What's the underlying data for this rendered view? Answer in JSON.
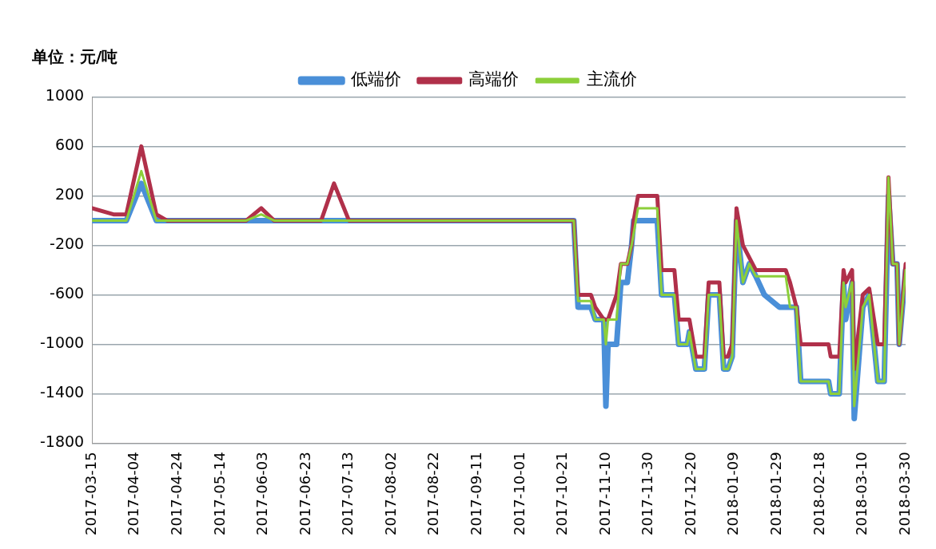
{
  "chart_data": {
    "type": "line",
    "ylabel": "单位：元/吨",
    "legend": "top",
    "grid": "y",
    "marker": "none",
    "line_style": "solid",
    "x": [
      "2017-03-15",
      "2017-03-25",
      "2017-03-31",
      "2017-04-07",
      "2017-04-14",
      "2017-04-19",
      "2017-05-26",
      "2017-06-02",
      "2017-06-08",
      "2017-06-30",
      "2017-07-06",
      "2017-07-13",
      "2017-10-26",
      "2017-10-28",
      "2017-11-03",
      "2017-11-05",
      "2017-11-09",
      "2017-11-10",
      "2017-11-11",
      "2017-11-15",
      "2017-11-17",
      "2017-11-20",
      "2017-11-22",
      "2017-11-23",
      "2017-11-25",
      "2017-12-04",
      "2017-12-06",
      "2017-12-12",
      "2017-12-14",
      "2017-12-18",
      "2017-12-19",
      "2017-12-22",
      "2017-12-26",
      "2017-12-28",
      "2018-01-02",
      "2018-01-04",
      "2018-01-06",
      "2018-01-08",
      "2018-01-10",
      "2018-01-13",
      "2018-01-16",
      "2018-01-19",
      "2018-01-23",
      "2018-01-30",
      "2018-02-02",
      "2018-02-04",
      "2018-02-07",
      "2018-02-09",
      "2018-02-22",
      "2018-02-23",
      "2018-02-27",
      "2018-03-01",
      "2018-03-02",
      "2018-03-05",
      "2018-03-06",
      "2018-03-10",
      "2018-03-13",
      "2018-03-17",
      "2018-03-20",
      "2018-03-22",
      "2018-03-24",
      "2018-03-26",
      "2018-03-27",
      "2018-03-30"
    ],
    "series": [
      {
        "name": "低端价",
        "color": "#4a8fd8",
        "values": [
          0,
          0,
          0,
          300,
          0,
          0,
          0,
          0,
          0,
          0,
          0,
          0,
          0,
          -700,
          -700,
          -800,
          -800,
          -1500,
          -1000,
          -1000,
          -500,
          -500,
          -200,
          0,
          0,
          0,
          -600,
          -600,
          -1000,
          -1000,
          -900,
          -1200,
          -1200,
          -600,
          -600,
          -1200,
          -1200,
          -1100,
          0,
          -500,
          -350,
          -450,
          -600,
          -700,
          -700,
          -700,
          -700,
          -1300,
          -1300,
          -1400,
          -1400,
          -500,
          -800,
          -500,
          -1600,
          -700,
          -600,
          -1300,
          -1300,
          200,
          -350,
          -350,
          -1000,
          -400
        ]
      },
      {
        "name": "高端价",
        "color": "#b0304a",
        "values": [
          100,
          50,
          50,
          600,
          50,
          0,
          0,
          100,
          0,
          0,
          300,
          0,
          0,
          -600,
          -600,
          -700,
          -800,
          -800,
          -800,
          -600,
          -350,
          -350,
          -200,
          0,
          200,
          200,
          -400,
          -400,
          -800,
          -800,
          -800,
          -1100,
          -1100,
          -500,
          -500,
          -1100,
          -1100,
          -1000,
          100,
          -200,
          -300,
          -400,
          -400,
          -400,
          -400,
          -500,
          -700,
          -1000,
          -1000,
          -1100,
          -1100,
          -400,
          -500,
          -400,
          -1200,
          -600,
          -550,
          -1000,
          -1000,
          350,
          -350,
          -350,
          -1000,
          -350
        ]
      },
      {
        "name": "主流价",
        "color": "#8ccf3a",
        "values": [
          0,
          0,
          0,
          400,
          0,
          0,
          0,
          50,
          0,
          0,
          0,
          0,
          0,
          -650,
          -650,
          -800,
          -800,
          -1000,
          -800,
          -800,
          -350,
          -350,
          -200,
          -100,
          100,
          100,
          -600,
          -600,
          -1000,
          -1000,
          -900,
          -1200,
          -1200,
          -600,
          -600,
          -1200,
          -1200,
          -1100,
          0,
          -500,
          -350,
          -450,
          -450,
          -450,
          -450,
          -700,
          -700,
          -1300,
          -1300,
          -1400,
          -1400,
          -500,
          -700,
          -500,
          -1500,
          -700,
          -600,
          -1300,
          -1300,
          350,
          -350,
          -350,
          -1000,
          -400
        ]
      }
    ],
    "xlim": [
      "2017-03-15",
      "2018-03-30"
    ],
    "xticks": [
      "2017-03-15",
      "2017-04-04",
      "2017-04-24",
      "2017-05-14",
      "2017-06-03",
      "2017-06-23",
      "2017-07-13",
      "2017-08-02",
      "2017-08-22",
      "2017-09-11",
      "2017-10-01",
      "2017-10-21",
      "2017-11-10",
      "2017-11-30",
      "2017-12-20",
      "2018-01-09",
      "2018-01-29",
      "2018-02-18",
      "2018-03-10",
      "2018-03-30"
    ],
    "ylim": [
      -1800,
      1000
    ],
    "yticks": [
      1000,
      600,
      200,
      -200,
      -600,
      -1000,
      -1400,
      -1800
    ]
  }
}
